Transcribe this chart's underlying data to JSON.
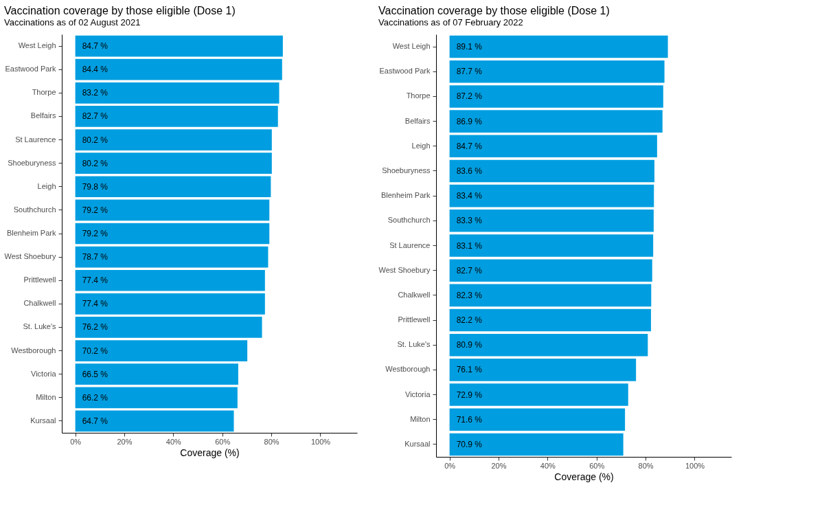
{
  "chart_data": [
    {
      "type": "bar",
      "orientation": "horizontal",
      "title": "Vaccination coverage by those eligible (Dose 1)",
      "subtitle": "Vaccinations as of 02 August 2021",
      "xlabel": "Coverage (%)",
      "categories": [
        "West Leigh",
        "Eastwood Park",
        "Thorpe",
        "Belfairs",
        "St Laurence",
        "Shoeburyness",
        "Leigh",
        "Southchurch",
        "Blenheim Park",
        "West Shoebury",
        "Prittlewell",
        "Chalkwell",
        "St. Luke's",
        "Westborough",
        "Victoria",
        "Milton",
        "Kursaal"
      ],
      "series": [
        {
          "color": "#009ee0",
          "values": [
            84.7,
            84.4,
            83.2,
            82.7,
            80.2,
            80.2,
            79.8,
            79.2,
            79.2,
            78.7,
            77.4,
            77.4,
            76.2,
            70.2,
            66.5,
            66.2,
            64.7
          ],
          "value_labels": [
            "84.7 %",
            "84.4 %",
            "83.2 %",
            "82.7 %",
            "80.2 %",
            "80.2 %",
            "79.8 %",
            "79.2 %",
            "79.2 %",
            "78.7 %",
            "77.4 %",
            "77.4 %",
            "76.2 %",
            "70.2 %",
            "66.5 %",
            "66.2 %",
            "64.7 %"
          ]
        }
      ],
      "xlim": [
        -5.5,
        115
      ],
      "xticks": [
        {
          "value": 0,
          "label": "0%"
        },
        {
          "value": 20,
          "label": "20%"
        },
        {
          "value": 40,
          "label": "40%"
        },
        {
          "value": 60,
          "label": "60%"
        },
        {
          "value": 80,
          "label": "80%"
        },
        {
          "value": 100,
          "label": "100%"
        }
      ],
      "grid": false
    },
    {
      "type": "bar",
      "orientation": "horizontal",
      "title": "Vaccination coverage by those eligible (Dose 1)",
      "subtitle": "Vaccinations as of 07 February 2022",
      "xlabel": "Coverage (%)",
      "categories": [
        "West Leigh",
        "Eastwood Park",
        "Thorpe",
        "Belfairs",
        "Leigh",
        "Shoeburyness",
        "Blenheim Park",
        "Southchurch",
        "St Laurence",
        "West Shoebury",
        "Chalkwell",
        "Prittlewell",
        "St. Luke's",
        "Westborough",
        "Victoria",
        "Milton",
        "Kursaal"
      ],
      "series": [
        {
          "color": "#009ee0",
          "values": [
            89.1,
            87.7,
            87.2,
            86.9,
            84.7,
            83.6,
            83.4,
            83.3,
            83.1,
            82.7,
            82.3,
            82.2,
            80.9,
            76.1,
            72.9,
            71.6,
            70.9
          ],
          "value_labels": [
            "89.1 %",
            "87.7 %",
            "87.2 %",
            "86.9 %",
            "84.7 %",
            "83.6 %",
            "83.4 %",
            "83.3 %",
            "83.1 %",
            "82.7 %",
            "82.3 %",
            "82.2 %",
            "80.9 %",
            "76.1 %",
            "72.9 %",
            "71.6 %",
            "70.9 %"
          ]
        }
      ],
      "xlim": [
        -5.5,
        115
      ],
      "xticks": [
        {
          "value": 0,
          "label": "0%"
        },
        {
          "value": 20,
          "label": "20%"
        },
        {
          "value": 40,
          "label": "40%"
        },
        {
          "value": 60,
          "label": "60%"
        },
        {
          "value": 80,
          "label": "80%"
        },
        {
          "value": 100,
          "label": "100%"
        }
      ],
      "grid": false
    }
  ]
}
